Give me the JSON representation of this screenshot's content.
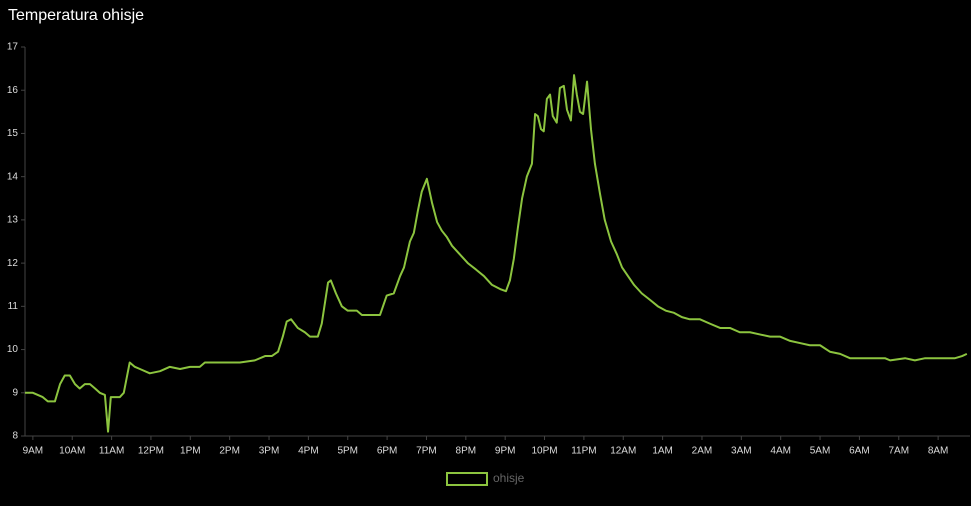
{
  "chart_data": {
    "type": "line",
    "title": "Temperatura ohisje",
    "x": [
      8.8,
      9.0,
      9.25,
      9.38,
      9.56,
      9.69,
      9.81,
      9.94,
      10.07,
      10.19,
      10.32,
      10.45,
      10.58,
      10.7,
      10.83,
      10.91,
      10.98,
      11.21,
      11.31,
      11.46,
      11.59,
      11.72,
      11.97,
      12.23,
      12.48,
      12.74,
      12.99,
      13.24,
      13.37,
      13.62,
      14.26,
      14.64,
      14.9,
      15.07,
      15.23,
      15.35,
      15.45,
      15.56,
      15.73,
      15.91,
      16.04,
      16.24,
      16.34,
      16.5,
      16.57,
      16.7,
      16.85,
      17.0,
      17.23,
      17.36,
      17.82,
      17.99,
      18.17,
      18.33,
      18.43,
      18.58,
      18.68,
      18.78,
      18.88,
      19.01,
      19.14,
      19.27,
      19.39,
      19.52,
      19.65,
      19.85,
      20.05,
      20.26,
      20.46,
      20.66,
      20.87,
      21.02,
      21.12,
      21.22,
      21.32,
      21.43,
      21.55,
      21.68,
      21.76,
      21.83,
      21.91,
      21.98,
      22.06,
      22.14,
      22.21,
      22.31,
      22.39,
      22.49,
      22.57,
      22.67,
      22.75,
      22.82,
      22.9,
      22.98,
      23.08,
      23.18,
      23.28,
      23.41,
      23.53,
      23.69,
      23.84,
      23.97,
      24.12,
      24.27,
      24.47,
      24.68,
      24.88,
      25.08,
      25.29,
      25.49,
      25.69,
      25.95,
      26.2,
      26.46,
      26.71,
      26.96,
      27.22,
      27.47,
      27.73,
      27.98,
      28.24,
      28.49,
      28.74,
      29.0,
      29.25,
      29.51,
      29.76,
      30.27,
      30.65,
      30.78,
      31.16,
      31.41,
      31.67,
      32.05,
      32.43,
      32.61,
      32.73
    ],
    "series": [
      {
        "name": "ohisje",
        "color": "#8cc43f",
        "values": [
          9.0,
          9.0,
          8.9,
          8.8,
          8.8,
          9.2,
          9.4,
          9.4,
          9.2,
          9.1,
          9.2,
          9.2,
          9.1,
          9.0,
          8.95,
          8.1,
          8.9,
          8.9,
          9.0,
          9.7,
          9.6,
          9.55,
          9.45,
          9.5,
          9.6,
          9.55,
          9.6,
          9.6,
          9.7,
          9.7,
          9.7,
          9.75,
          9.85,
          9.85,
          9.95,
          10.3,
          10.65,
          10.7,
          10.5,
          10.4,
          10.3,
          10.3,
          10.6,
          11.55,
          11.6,
          11.3,
          11.0,
          10.9,
          10.9,
          10.8,
          10.8,
          11.25,
          11.3,
          11.7,
          11.9,
          12.5,
          12.7,
          13.2,
          13.65,
          13.95,
          13.4,
          12.95,
          12.75,
          12.6,
          12.4,
          12.2,
          12.0,
          11.85,
          11.7,
          11.5,
          11.4,
          11.35,
          11.6,
          12.1,
          12.8,
          13.5,
          14.0,
          14.3,
          15.45,
          15.4,
          15.1,
          15.05,
          15.8,
          15.9,
          15.4,
          15.25,
          16.05,
          16.1,
          15.55,
          15.3,
          16.35,
          15.9,
          15.5,
          15.45,
          16.2,
          15.1,
          14.3,
          13.6,
          13.0,
          12.5,
          12.2,
          11.9,
          11.7,
          11.5,
          11.3,
          11.15,
          11.0,
          10.9,
          10.85,
          10.75,
          10.7,
          10.7,
          10.6,
          10.5,
          10.5,
          10.4,
          10.4,
          10.35,
          10.3,
          10.3,
          10.2,
          10.15,
          10.1,
          10.1,
          9.95,
          9.9,
          9.8,
          9.8,
          9.8,
          9.75,
          9.8,
          9.75,
          9.8,
          9.8,
          9.8,
          9.85,
          9.9
        ]
      }
    ],
    "xlim": [
      8.8,
      32.81
    ],
    "xticks": [
      {
        "value": 9,
        "label": "9AM"
      },
      {
        "value": 10,
        "label": "10AM"
      },
      {
        "value": 11,
        "label": "11AM"
      },
      {
        "value": 12,
        "label": "12PM"
      },
      {
        "value": 13,
        "label": "1PM"
      },
      {
        "value": 14,
        "label": "2PM"
      },
      {
        "value": 15,
        "label": "3PM"
      },
      {
        "value": 16,
        "label": "4PM"
      },
      {
        "value": 17,
        "label": "5PM"
      },
      {
        "value": 18,
        "label": "6PM"
      },
      {
        "value": 19,
        "label": "7PM"
      },
      {
        "value": 20,
        "label": "8PM"
      },
      {
        "value": 21,
        "label": "9PM"
      },
      {
        "value": 22,
        "label": "10PM"
      },
      {
        "value": 23,
        "label": "11PM"
      },
      {
        "value": 24,
        "label": "12AM"
      },
      {
        "value": 25,
        "label": "1AM"
      },
      {
        "value": 26,
        "label": "2AM"
      },
      {
        "value": 27,
        "label": "3AM"
      },
      {
        "value": 28,
        "label": "4AM"
      },
      {
        "value": 29,
        "label": "5AM"
      },
      {
        "value": 30,
        "label": "6AM"
      },
      {
        "value": 31,
        "label": "7AM"
      },
      {
        "value": 32,
        "label": "8AM"
      }
    ],
    "ylim": [
      8,
      17
    ],
    "yticks": [
      8,
      9,
      10,
      11,
      12,
      13,
      14,
      15,
      16,
      17
    ],
    "grid": false
  }
}
